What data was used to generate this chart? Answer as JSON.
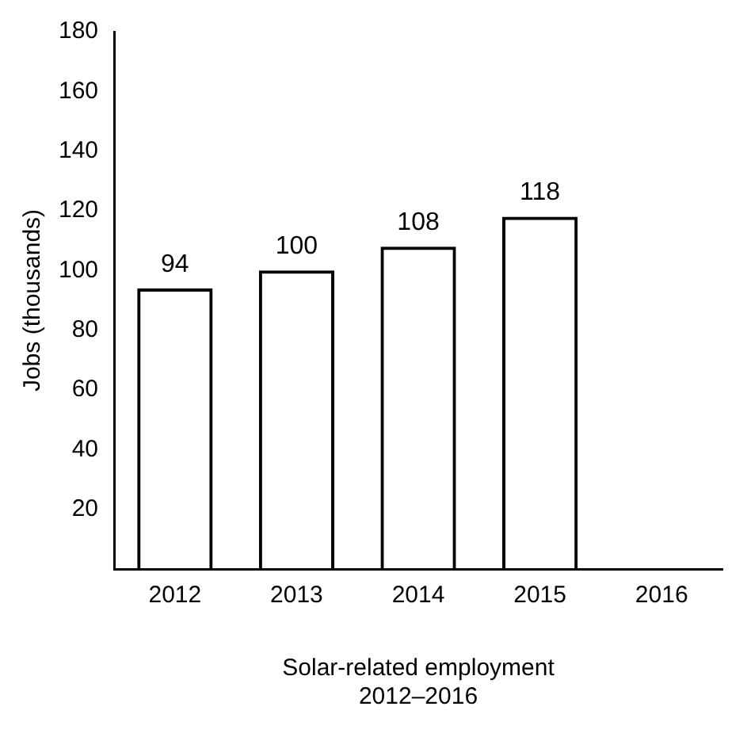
{
  "chart_data": {
    "type": "bar",
    "categories": [
      "2012",
      "2013",
      "2014",
      "2015",
      "2016"
    ],
    "values": [
      94,
      100,
      108,
      118,
      null
    ],
    "color": "#000000",
    "ylabel": "Jobs (thousands)",
    "xlabel": "Solar-related employment\n2012–2016",
    "ylim": [
      0,
      180
    ],
    "yticks": [
      20,
      40,
      60,
      80,
      100,
      120,
      140,
      160,
      180
    ],
    "data_labels": true,
    "grid": false,
    "legend": false
  }
}
